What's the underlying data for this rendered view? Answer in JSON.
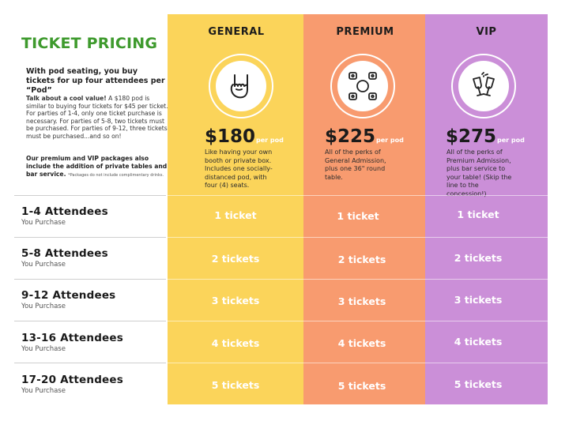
{
  "header": {
    "title": "TICKET PRICING",
    "intro_bold": "With pod seating, you buy tickets for up four attendees per “Pod”",
    "intro_lead": "Talk about a cool value!",
    "intro_text": " A $180 pod is similar to buying four tickets for $45 per ticket. For parties of 1-4, only one ticket purchase is necessary. For parties of  5-8, two tickets must be purchased. For parties of 9-12, three tickets must be purchased...and so on!",
    "footer_bold": "Our premium and VIP packages also include the addition of private tables and bar service.",
    "footer_note": "*Packages do not include complimentary drinks."
  },
  "tiers": [
    {
      "name": "GENERAL",
      "icon": "rock-hand-icon",
      "price": "$180",
      "per_pod": "per pod",
      "description": "Like having your own booth or private box. Includes one socially-distanced pod, with four (4) seats.",
      "color": "#fbd45a"
    },
    {
      "name": "PREMIUM",
      "icon": "round-table-icon",
      "price": "$225",
      "per_pod": "per pod",
      "description": "All of the perks of General Admission, plus one 36\" round table.",
      "color": "#f89b6f"
    },
    {
      "name": "VIP",
      "icon": "champagne-toast-icon",
      "price": "$275",
      "per_pod": "per pod",
      "description": "All of the perks of Premium Admission, plus bar service to your table! (Skip the line to the concession!)",
      "color": "#cb8fd8"
    }
  ],
  "rows": [
    {
      "label": "1-4 Attendees",
      "sub": "You Purchase",
      "tickets": "1 ticket"
    },
    {
      "label": "5-8 Attendees",
      "sub": "You Purchase",
      "tickets": "2 tickets"
    },
    {
      "label": "9-12 Attendees",
      "sub": "You Purchase",
      "tickets": "3 tickets"
    },
    {
      "label": "13-16 Attendees",
      "sub": "You Purchase",
      "tickets": "4 tickets"
    },
    {
      "label": "17-20 Attendees",
      "sub": "You Purchase",
      "tickets": "5 tickets"
    }
  ],
  "colors": {
    "title_green": "#3e9a2d"
  }
}
